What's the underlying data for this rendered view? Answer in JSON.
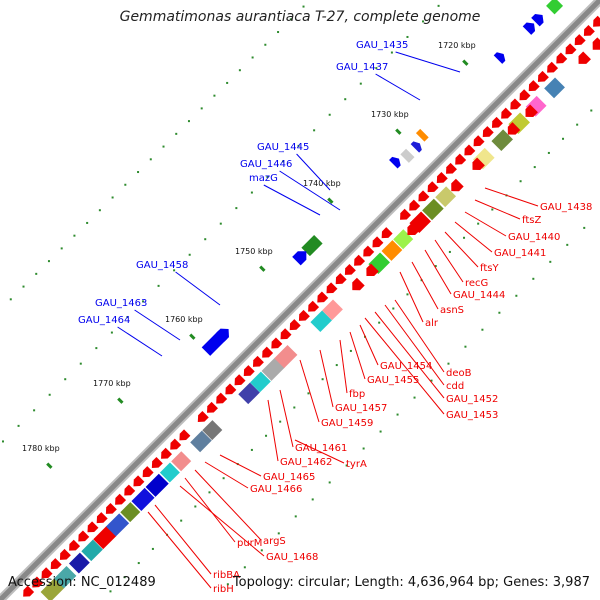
{
  "title": "Gemmatimonas aurantiaca T-27, complete genome",
  "footer": {
    "accession": "Accession: NC_012489",
    "summary": "Topology: circular; Length: 4,636,964 bp; Genes: 3,987"
  },
  "ticks": [
    "1720 kbp",
    "1730 kbp",
    "1740 kbp",
    "1750 kbp",
    "1760 kbp",
    "1770 kbp",
    "1780 kbp"
  ],
  "colors": {
    "forward_label": "#0000ee",
    "reverse_label": "#ee0000",
    "tick": "#228b22",
    "backbone": "#888888"
  },
  "forward_labels": [
    "GAU_1435",
    "GAU_1437",
    "GAU_1445",
    "GAU_1446",
    "mazG",
    "GAU_1458",
    "GAU_1463",
    "GAU_1464"
  ],
  "reverse_labels": [
    "GAU_1438",
    "ftsZ",
    "GAU_1440",
    "GAU_1441",
    "ftsY",
    "recG",
    "GAU_1444",
    "asnS",
    "alr",
    "deoB",
    "cdd",
    "GAU_1452",
    "GAU_1453",
    "GAU_1454",
    "GAU_1455",
    "fbp",
    "GAU_1457",
    "GAU_1459",
    "GAU_1461",
    "GAU_1462",
    "tyrA",
    "GAU_1465",
    "GAU_1466",
    "argS",
    "purM",
    "GAU_1468",
    "ribBA",
    "ribH"
  ]
}
